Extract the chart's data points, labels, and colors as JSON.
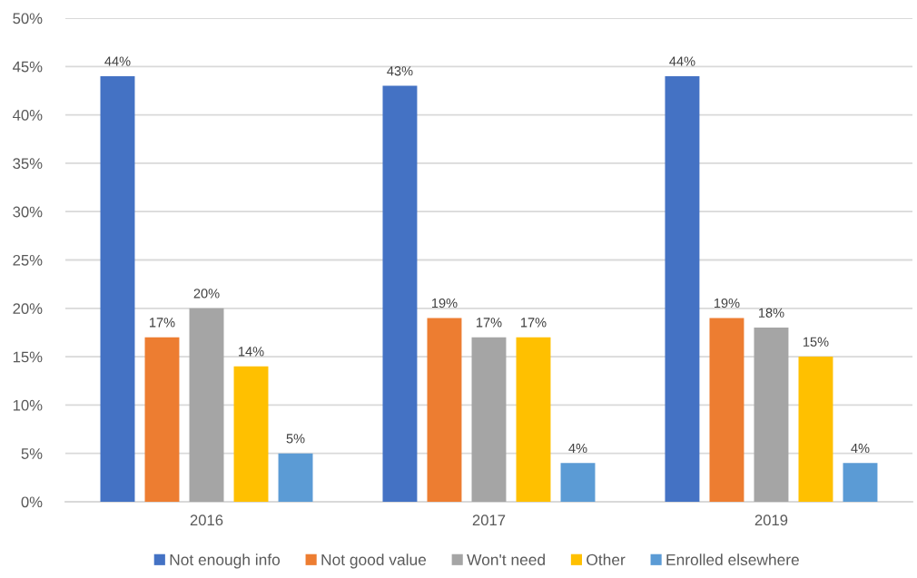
{
  "chart_data": {
    "type": "bar",
    "categories": [
      "2016",
      "2017",
      "2019"
    ],
    "series": [
      {
        "name": "Not enough info",
        "color": "#4472c4",
        "values": [
          44,
          43,
          44
        ],
        "value_labels": [
          "44%",
          "43%",
          "44%"
        ]
      },
      {
        "name": "Not good value",
        "color": "#ed7d31",
        "values": [
          17,
          19,
          19
        ],
        "value_labels": [
          "17%",
          "19%",
          "19%"
        ]
      },
      {
        "name": "Won't need",
        "color": "#a5a5a5",
        "values": [
          20,
          17,
          18
        ],
        "value_labels": [
          "20%",
          "17%",
          "18%"
        ]
      },
      {
        "name": "Other",
        "color": "#ffc000",
        "values": [
          14,
          17,
          15
        ],
        "value_labels": [
          "14%",
          "17%",
          "15%"
        ]
      },
      {
        "name": "Enrolled elsewhere",
        "color": "#5b9bd5",
        "values": [
          5,
          4,
          4
        ],
        "value_labels": [
          "5%",
          "4%",
          "4%"
        ]
      }
    ],
    "ylim": [
      0,
      50
    ],
    "yticks": [
      {
        "value": 0,
        "label": "0%"
      },
      {
        "value": 5,
        "label": "5%"
      },
      {
        "value": 10,
        "label": "10%"
      },
      {
        "value": 15,
        "label": "15%"
      },
      {
        "value": 20,
        "label": "20%"
      },
      {
        "value": 25,
        "label": "25%"
      },
      {
        "value": 30,
        "label": "30%"
      },
      {
        "value": 35,
        "label": "35%"
      },
      {
        "value": 40,
        "label": "40%"
      },
      {
        "value": 45,
        "label": "45%"
      },
      {
        "value": 50,
        "label": "50%"
      }
    ],
    "grid": "y",
    "legend": "bottom"
  }
}
